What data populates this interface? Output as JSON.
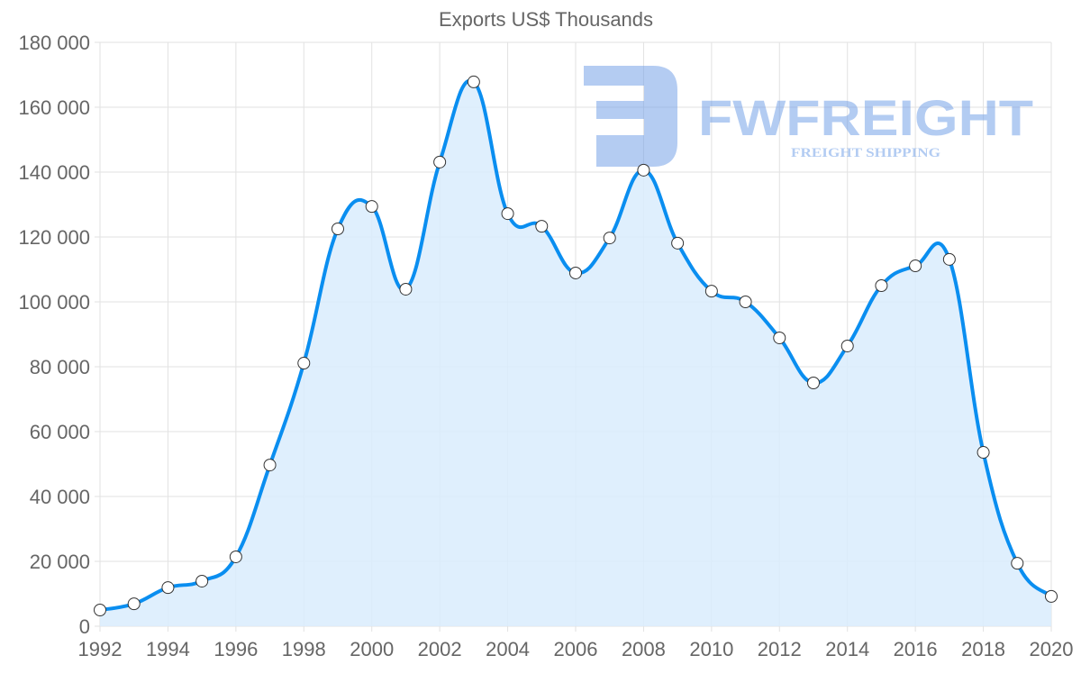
{
  "watermark": {
    "brand": "FWFREIGHT",
    "tagline": "FREIGHT SHIPPING"
  },
  "chart_data": {
    "type": "area",
    "title": "Exports US$ Thousands",
    "xlabel": "",
    "ylabel": "",
    "x": [
      1992,
      1993,
      1994,
      1995,
      1996,
      1997,
      1998,
      1999,
      2000,
      2001,
      2002,
      2003,
      2004,
      2005,
      2006,
      2007,
      2008,
      2009,
      2010,
      2011,
      2012,
      2013,
      2014,
      2015,
      2016,
      2017,
      2018,
      2019,
      2020
    ],
    "series": [
      {
        "name": "Exports US$ Thousands",
        "values": [
          5000,
          6900,
          11900,
          13900,
          21400,
          49700,
          81100,
          122500,
          129400,
          103900,
          143100,
          167800,
          127200,
          123300,
          108900,
          119700,
          140600,
          118100,
          103300,
          100000,
          88900,
          75000,
          86400,
          105000,
          111100,
          113100,
          53600,
          19400,
          9200
        ],
        "color": "#0a8ef0",
        "fill": "#d9ecfd"
      }
    ],
    "xlim": [
      1992,
      2020
    ],
    "ylim": [
      0,
      180000
    ],
    "xticks": [
      "1992",
      "1994",
      "1996",
      "1998",
      "2000",
      "2002",
      "2004",
      "2006",
      "2008",
      "2010",
      "2012",
      "2014",
      "2016",
      "2018",
      "2020"
    ],
    "yticks": [
      "0",
      "20 000",
      "40 000",
      "60 000",
      "80 000",
      "100 000",
      "120 000",
      "140 000",
      "160 000",
      "180 000"
    ],
    "grid": true,
    "legend": "none"
  }
}
